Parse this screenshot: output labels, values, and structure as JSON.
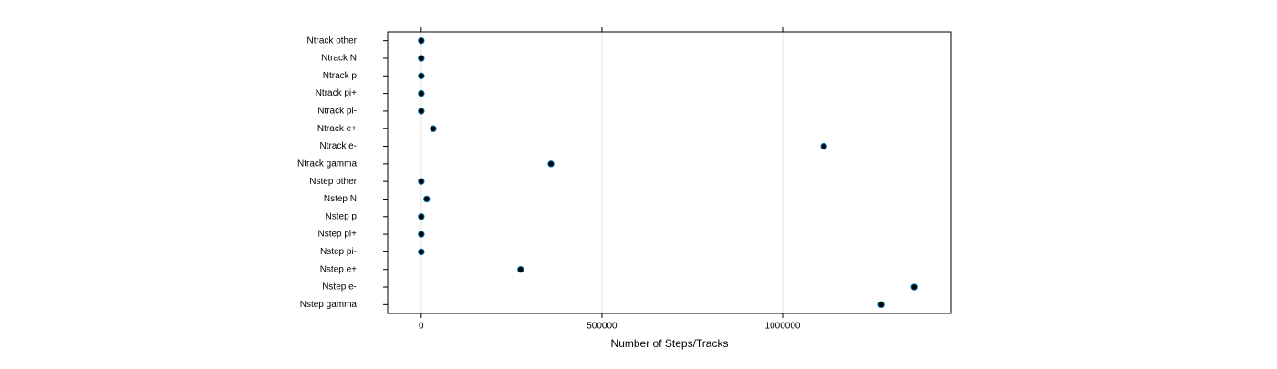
{
  "chart_data": {
    "type": "dot",
    "xlabel": "Number of Steps/Tracks",
    "categories": [
      "Ntrack other",
      "Ntrack N",
      "Ntrack p",
      "Ntrack pi+",
      "Ntrack pi-",
      "Ntrack e+",
      "Ntrack e-",
      "Ntrack gamma",
      "Nstep other",
      "Nstep N",
      "Nstep p",
      "Nstep pi+",
      "Nstep pi-",
      "Nstep e+",
      "Nstep e-",
      "Nstep gamma"
    ],
    "values": [
      0,
      0,
      0,
      0,
      0,
      33000,
      1114000,
      359000,
      0,
      15000,
      0,
      0,
      0,
      275000,
      1364000,
      1273000
    ],
    "color": "#000000",
    "xlim": [
      -93000,
      1467000
    ],
    "xticks": [
      0,
      500000,
      1000000
    ],
    "grid": true
  }
}
